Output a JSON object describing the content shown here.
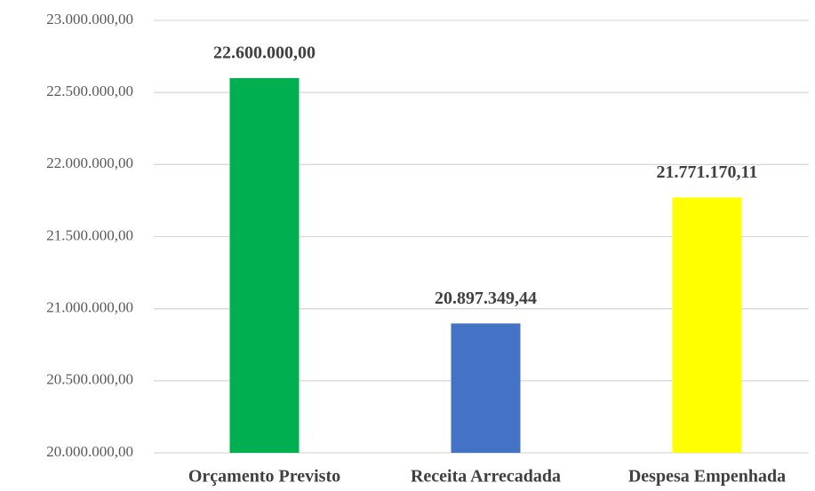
{
  "chart_data": {
    "type": "bar",
    "categories": [
      "Orçamento Previsto",
      "Receita Arrecadada",
      "Despesa Empenhada"
    ],
    "values": [
      22600000,
      20897349.44,
      21771170.11
    ],
    "value_labels": [
      "22.600.000,00",
      "20.897.349,44",
      "21.771.170,11"
    ],
    "colors": [
      "#00b050",
      "#4472c4",
      "#ffff00"
    ],
    "ylim": [
      20000000,
      23000000
    ],
    "yticks": [
      {
        "value": 20000000,
        "label": "20.000.000,00"
      },
      {
        "value": 20500000,
        "label": "20.500.000,00"
      },
      {
        "value": 21000000,
        "label": "21.000.000,00"
      },
      {
        "value": 21500000,
        "label": "21.500.000,00"
      },
      {
        "value": 22000000,
        "label": "22.000.000,00"
      },
      {
        "value": 22500000,
        "label": "22.500.000,00"
      },
      {
        "value": 23000000,
        "label": "23.000.000,00"
      }
    ],
    "grid": true
  }
}
